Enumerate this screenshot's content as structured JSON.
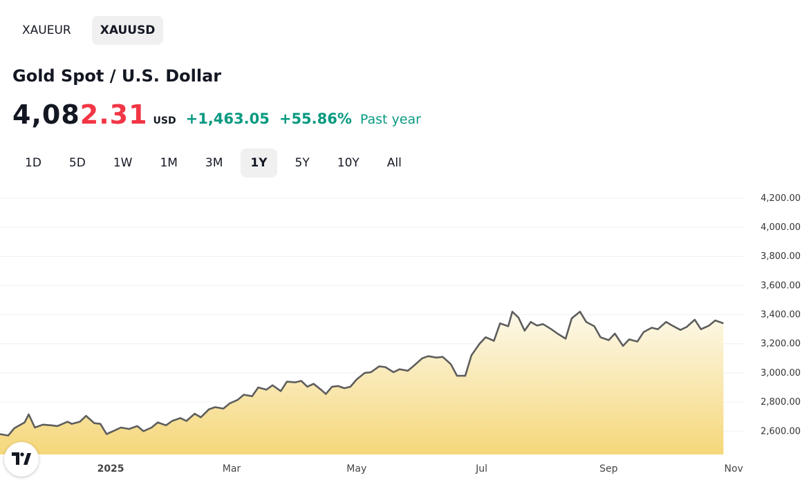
{
  "symbols": [
    {
      "label": "XAUEUR",
      "active": false
    },
    {
      "label": "XAUUSD",
      "active": true
    }
  ],
  "instrument": {
    "title": "Gold Spot / U.S. Dollar",
    "price_main": "4,08",
    "price_last": "2.31",
    "currency": "USD",
    "change": "+1,463.05",
    "change_pct": "+55.86%",
    "period": "Past year"
  },
  "ranges": [
    {
      "label": "1D",
      "active": false
    },
    {
      "label": "5D",
      "active": false
    },
    {
      "label": "1W",
      "active": false
    },
    {
      "label": "1M",
      "active": false
    },
    {
      "label": "3M",
      "active": false
    },
    {
      "label": "1Y",
      "active": true
    },
    {
      "label": "5Y",
      "active": false
    },
    {
      "label": "10Y",
      "active": false
    },
    {
      "label": "All",
      "active": false
    }
  ],
  "colors": {
    "up": "#089981",
    "price_last": "#f23645",
    "line": "#5d5d5d",
    "fill_top": "#fdf9ea",
    "fill_bottom": "#f5d77a"
  },
  "logo_icon": "tradingview-logo-icon",
  "chart_data": {
    "type": "area",
    "title": "",
    "xlabel": "",
    "ylabel": "",
    "ylim": [
      2440,
      4280
    ],
    "grid": true,
    "y_ticks": [
      "2,600.00",
      "2,800.00",
      "3,000.00",
      "3,200.00",
      "3,400.00",
      "3,600.00",
      "3,800.00",
      "4,000.00",
      "4,200.00"
    ],
    "y_tick_values": [
      2600,
      2800,
      3000,
      3200,
      3400,
      3600,
      3800,
      4000,
      4200
    ],
    "x_ticks": [
      "2025",
      "Mar",
      "May",
      "Jul",
      "Sep",
      "Nov"
    ],
    "x_tick_dates": [
      "2025-01-01",
      "2025-03-01",
      "2025-05-01",
      "2025-07-01",
      "2025-09-01",
      "2025-11-01"
    ],
    "x_range": [
      "2024-11-08",
      "2025-11-06"
    ],
    "series": [
      {
        "values": [
          [
            "2024-11-08",
            2580
          ],
          [
            "2024-11-12",
            2570
          ],
          [
            "2024-11-15",
            2620
          ],
          [
            "2024-11-20",
            2660
          ],
          [
            "2024-11-22",
            2715
          ],
          [
            "2024-11-25",
            2625
          ],
          [
            "2024-11-29",
            2645
          ],
          [
            "2024-12-03",
            2640
          ],
          [
            "2024-12-06",
            2635
          ],
          [
            "2024-12-11",
            2665
          ],
          [
            "2024-12-13",
            2650
          ],
          [
            "2024-12-17",
            2665
          ],
          [
            "2024-12-20",
            2705
          ],
          [
            "2024-12-24",
            2655
          ],
          [
            "2024-12-27",
            2650
          ],
          [
            "2024-12-30",
            2580
          ],
          [
            "2025-01-03",
            2605
          ],
          [
            "2025-01-06",
            2625
          ],
          [
            "2025-01-10",
            2615
          ],
          [
            "2025-01-14",
            2635
          ],
          [
            "2025-01-17",
            2600
          ],
          [
            "2025-01-21",
            2625
          ],
          [
            "2025-01-24",
            2660
          ],
          [
            "2025-01-28",
            2640
          ],
          [
            "2025-01-31",
            2670
          ],
          [
            "2025-02-04",
            2690
          ],
          [
            "2025-02-07",
            2670
          ],
          [
            "2025-02-11",
            2720
          ],
          [
            "2025-02-14",
            2695
          ],
          [
            "2025-02-18",
            2750
          ],
          [
            "2025-02-21",
            2765
          ],
          [
            "2025-02-25",
            2755
          ],
          [
            "2025-02-28",
            2790
          ],
          [
            "2025-03-04",
            2815
          ],
          [
            "2025-03-07",
            2850
          ],
          [
            "2025-03-11",
            2840
          ],
          [
            "2025-03-14",
            2900
          ],
          [
            "2025-03-18",
            2885
          ],
          [
            "2025-03-21",
            2915
          ],
          [
            "2025-03-25",
            2875
          ],
          [
            "2025-03-28",
            2940
          ],
          [
            "2025-04-01",
            2935
          ],
          [
            "2025-04-04",
            2945
          ],
          [
            "2025-04-07",
            2905
          ],
          [
            "2025-04-10",
            2925
          ],
          [
            "2025-04-14",
            2880
          ],
          [
            "2025-04-16",
            2855
          ],
          [
            "2025-04-19",
            2905
          ],
          [
            "2025-04-22",
            2910
          ],
          [
            "2025-04-25",
            2895
          ],
          [
            "2025-04-28",
            2905
          ],
          [
            "2025-05-01",
            2955
          ],
          [
            "2025-05-05",
            3000
          ],
          [
            "2025-05-08",
            3005
          ],
          [
            "2025-05-12",
            3045
          ],
          [
            "2025-05-15",
            3040
          ],
          [
            "2025-05-19",
            3005
          ],
          [
            "2025-05-22",
            3025
          ],
          [
            "2025-05-26",
            3015
          ],
          [
            "2025-05-29",
            3050
          ],
          [
            "2025-06-02",
            3100
          ],
          [
            "2025-06-05",
            3115
          ],
          [
            "2025-06-09",
            3105
          ],
          [
            "2025-06-12",
            3110
          ],
          [
            "2025-06-16",
            3060
          ],
          [
            "2025-06-19",
            2980
          ],
          [
            "2025-06-23",
            2980
          ],
          [
            "2025-06-26",
            3120
          ],
          [
            "2025-06-30",
            3200
          ],
          [
            "2025-07-03",
            3245
          ],
          [
            "2025-07-07",
            3220
          ],
          [
            "2025-07-10",
            3340
          ],
          [
            "2025-07-14",
            3320
          ],
          [
            "2025-07-16",
            3420
          ],
          [
            "2025-07-19",
            3380
          ],
          [
            "2025-07-22",
            3290
          ],
          [
            "2025-07-25",
            3350
          ],
          [
            "2025-07-28",
            3325
          ],
          [
            "2025-07-31",
            3335
          ],
          [
            "2025-08-04",
            3300
          ],
          [
            "2025-08-07",
            3270
          ],
          [
            "2025-08-11",
            3235
          ],
          [
            "2025-08-14",
            3375
          ],
          [
            "2025-08-18",
            3420
          ],
          [
            "2025-08-21",
            3350
          ],
          [
            "2025-08-25",
            3320
          ],
          [
            "2025-08-28",
            3245
          ],
          [
            "2025-09-01",
            3225
          ],
          [
            "2025-09-04",
            3270
          ],
          [
            "2025-09-08",
            3185
          ],
          [
            "2025-09-11",
            3230
          ],
          [
            "2025-09-15",
            3215
          ],
          [
            "2025-09-18",
            3280
          ],
          [
            "2025-09-22",
            3310
          ],
          [
            "2025-09-25",
            3300
          ],
          [
            "2025-09-29",
            3350
          ],
          [
            "2025-10-02",
            3325
          ],
          [
            "2025-10-06",
            3295
          ],
          [
            "2025-10-09",
            3315
          ],
          [
            "2025-10-13",
            3365
          ],
          [
            "2025-10-16",
            3300
          ],
          [
            "2025-10-20",
            3325
          ],
          [
            "2025-10-23",
            3360
          ],
          [
            "2025-10-27",
            3340
          ]
        ]
      }
    ]
  }
}
